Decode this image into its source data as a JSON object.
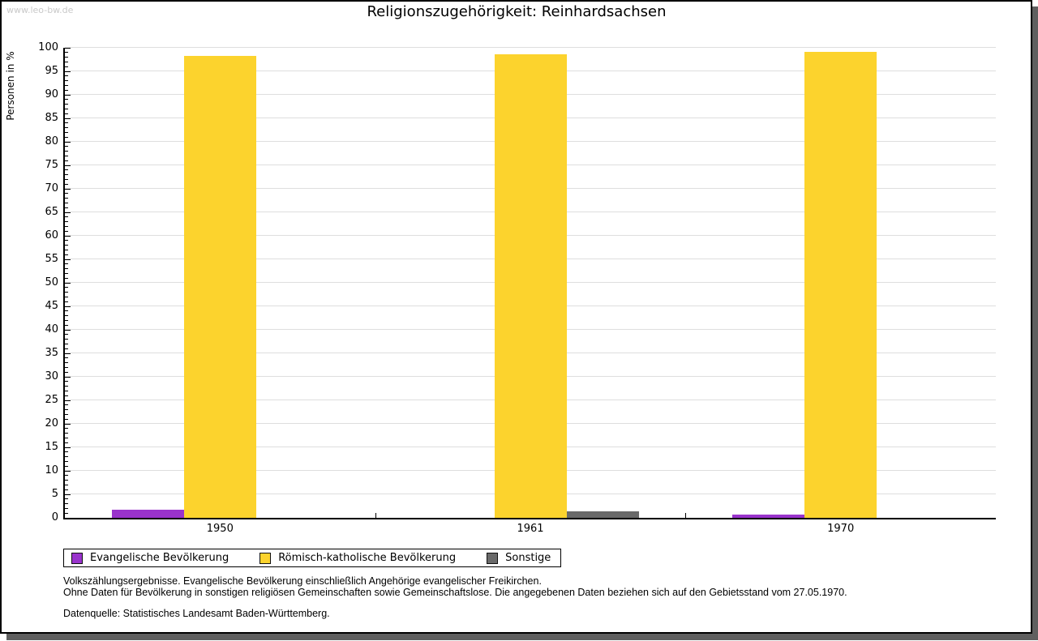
{
  "watermark": "www.leo-bw.de",
  "chart_data": {
    "type": "bar",
    "title": "Religionszugehörigkeit: Reinhardsachsen",
    "xlabel": "",
    "ylabel": "Personen in %",
    "categories": [
      "1950",
      "1961",
      "1970"
    ],
    "series": [
      {
        "name": "Evangelische Bevölkerung",
        "color": "#9933cc",
        "values": [
          1.8,
          0,
          0.7
        ]
      },
      {
        "name": "Römisch-katholische Bevölkerung",
        "color": "#fcd32d",
        "values": [
          98.3,
          98.6,
          99.2
        ]
      },
      {
        "name": "Sonstige",
        "color": "#6a6a6a",
        "values": [
          0,
          1.3,
          0
        ]
      }
    ],
    "ylim": [
      0,
      100
    ],
    "ytick_step": 5,
    "minor_tick_step": 1,
    "grid": true,
    "legend_position": "bottom-left"
  },
  "colors": {
    "gridline": "#dedede",
    "axis": "#000000",
    "window_shadow": "#5f5f5f",
    "watermark": "#c9c9c9"
  },
  "footnotes": [
    "Volkszählungsergebnisse. Evangelische Bevölkerung einschließlich Angehörige evangelischer Freikirchen.",
    "Ohne Daten für Bevölkerung in sonstigen religiösen Gemeinschaften sowie Gemeinschaftslose. Die angegebenen Daten beziehen sich auf den Gebietsstand vom 27.05.1970."
  ],
  "source": "Datenquelle: Statistisches Landesamt Baden-Württemberg."
}
